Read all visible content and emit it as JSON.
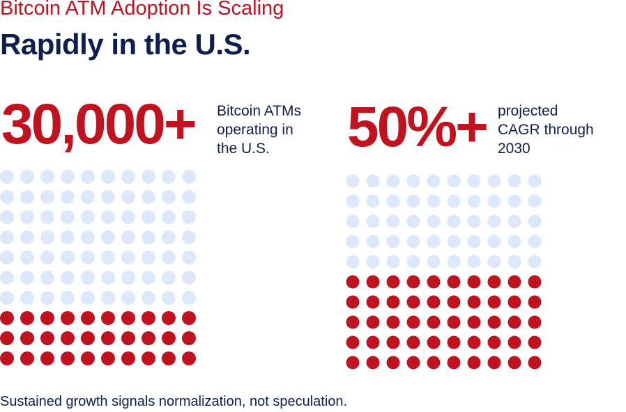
{
  "header": {
    "supertitle": "Bitcoin ATM Adoption Is Scaling",
    "title": "Rapidly in the U.S."
  },
  "footer": "Sustained growth signals normalization, not speculation.",
  "colors": {
    "accent": "#c1121f",
    "empty": "#dde9fb",
    "text": "#0e1f4d"
  },
  "chart_data": [
    {
      "type": "waffle",
      "headline": "30,000+",
      "label": "Bitcoin ATMs\noperating in\nthe U.S.",
      "rows": 10,
      "cols": 10,
      "filled": 30,
      "total": 100,
      "fill_from": "bottom"
    },
    {
      "type": "waffle",
      "headline": "50%+",
      "label": "projected\nCAGR through\n2030",
      "rows": 10,
      "cols": 10,
      "filled": 50,
      "total": 100,
      "fill_from": "bottom"
    }
  ]
}
